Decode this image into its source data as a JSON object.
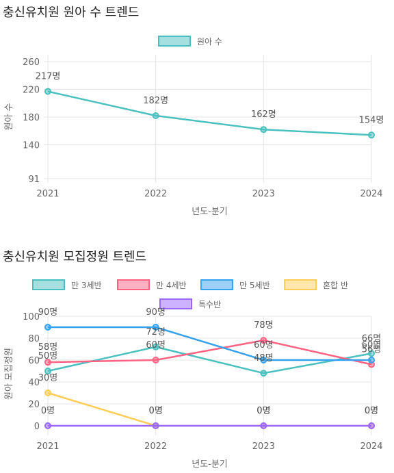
{
  "sections": [
    {
      "title": "충신유치원 원아 수 트렌드"
    },
    {
      "title": "충신유치원 모집정원 트렌드"
    }
  ],
  "chart_data": [
    {
      "type": "line",
      "title": "",
      "xlabel": "년도-분기",
      "ylabel": "원아 수",
      "categories": [
        "2021",
        "2022",
        "2023",
        "2024"
      ],
      "yticks": [
        91,
        140,
        180,
        220,
        260
      ],
      "ylim": [
        91,
        270
      ],
      "grid": true,
      "legend_position": "top-center",
      "series": [
        {
          "name": "원아 수",
          "color": "#4bc0c0",
          "values": [
            217,
            182,
            162,
            154
          ],
          "labels": [
            "217명",
            "182명",
            "162명",
            "154명"
          ]
        }
      ]
    },
    {
      "type": "line",
      "title": "",
      "xlabel": "년도-분기",
      "ylabel": "원아 모집정원",
      "categories": [
        "2021",
        "2022",
        "2023",
        "2024"
      ],
      "yticks": [
        0,
        20,
        40,
        60,
        80,
        100
      ],
      "ylim": [
        -5,
        100
      ],
      "grid": true,
      "legend_position": "top-center",
      "series": [
        {
          "name": "만 3세반",
          "color": "#4bc0c0",
          "values": [
            50,
            72,
            48,
            66
          ],
          "labels": [
            "50명",
            "72명",
            "48명",
            "66명"
          ]
        },
        {
          "name": "만 4세반",
          "color": "#ff6384",
          "values": [
            58,
            60,
            78,
            56
          ],
          "labels": [
            "58명",
            "60명",
            "78명",
            "56명"
          ]
        },
        {
          "name": "만 5세반",
          "color": "#36a2eb",
          "values": [
            90,
            90,
            60,
            60
          ],
          "labels": [
            "90명",
            "90명",
            "60명",
            "60명"
          ]
        },
        {
          "name": "혼합 반",
          "color": "#ffcd56",
          "values": [
            30,
            0,
            0,
            0
          ],
          "labels": [
            "30명",
            "0명",
            "0명",
            "0명"
          ]
        },
        {
          "name": "특수반",
          "color": "#9966ff",
          "values": [
            0,
            0,
            0,
            0
          ],
          "labels": [
            "0명",
            "0명",
            "0명",
            "0명"
          ]
        }
      ]
    }
  ]
}
